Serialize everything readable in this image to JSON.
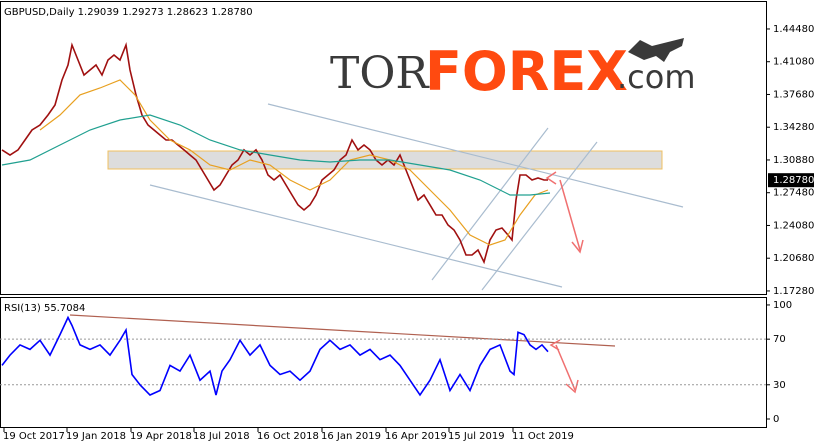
{
  "chart_data": [
    {
      "type": "line",
      "title": "GBPUSD,Daily  1.29039 1.29273 1.28623 1.28780",
      "logo": {
        "a": "TOR",
        "b": "FOREX",
        "c": ".com"
      },
      "xlim": [
        0,
        766
      ],
      "ylim": [
        1.1686,
        1.4728
      ],
      "yticks": [
        {
          "value": 1.4448,
          "label": "1.44480"
        },
        {
          "value": 1.4108,
          "label": "1.41080"
        },
        {
          "value": 1.3768,
          "label": "1.37680"
        },
        {
          "value": 1.3428,
          "label": "1.34280"
        },
        {
          "value": 1.3088,
          "label": "1.30880"
        },
        {
          "value": 1.2748,
          "label": "1.27480"
        },
        {
          "value": 1.2408,
          "label": "1.24080"
        },
        {
          "value": 1.2068,
          "label": "1.20680"
        },
        {
          "value": 1.1728,
          "label": "1.17280"
        }
      ],
      "last_price": {
        "value": 1.2878,
        "label": "1.28780"
      },
      "series": [
        {
          "color": "#a01010",
          "x": [
            2,
            10,
            18,
            25,
            32,
            40,
            48,
            55,
            62,
            68,
            72,
            78,
            84,
            90,
            96,
            102,
            108,
            114,
            120,
            126,
            130,
            136,
            142,
            148,
            154,
            160,
            166,
            172,
            178,
            184,
            190,
            196,
            202,
            208,
            214,
            220,
            226,
            232,
            238,
            244,
            250,
            256,
            262,
            268,
            274,
            280,
            286,
            292,
            298,
            304,
            310,
            316,
            322,
            328,
            334,
            340,
            346,
            352,
            358,
            364,
            370,
            376,
            382,
            388,
            394,
            400,
            406,
            412,
            418,
            424,
            430,
            436,
            442,
            448,
            454,
            460,
            466,
            472,
            478,
            484,
            490,
            496,
            502,
            508,
            512,
            516,
            520,
            526,
            532,
            538,
            544,
            548
          ],
          "values": [
            1.3192,
            1.314,
            1.3192,
            1.3295,
            1.3399,
            1.3451,
            1.3555,
            1.3659,
            1.3918,
            1.4074,
            1.4282,
            1.4126,
            1.397,
            1.4022,
            1.4074,
            1.397,
            1.4126,
            1.4178,
            1.4126,
            1.4282,
            1.4022,
            1.3763,
            1.3555,
            1.3451,
            1.3399,
            1.3347,
            1.3295,
            1.3295,
            1.3243,
            1.3192,
            1.314,
            1.3088,
            1.2984,
            1.288,
            1.2776,
            1.2828,
            1.2932,
            1.3036,
            1.3088,
            1.3192,
            1.314,
            1.3192,
            1.3088,
            1.2932,
            1.288,
            1.2932,
            1.2828,
            1.2724,
            1.2621,
            1.2569,
            1.2621,
            1.2724,
            1.288,
            1.2932,
            1.2984,
            1.3088,
            1.314,
            1.3295,
            1.3192,
            1.3243,
            1.3192,
            1.3088,
            1.3036,
            1.3088,
            1.3036,
            1.314,
            1.2984,
            1.2828,
            1.2672,
            1.2724,
            1.2621,
            1.2517,
            1.2517,
            1.2413,
            1.2361,
            1.2257,
            1.2101,
            1.2101,
            1.2153,
            1.2029,
            1.2257,
            1.2361,
            1.2382,
            1.2309,
            1.2257,
            1.2672,
            1.2932,
            1.2932,
            1.288,
            1.2901,
            1.288,
            1.288
          ]
        },
        {
          "color": "#e8a020",
          "x": [
            40,
            60,
            80,
            100,
            120,
            135,
            150,
            170,
            190,
            210,
            230,
            250,
            270,
            290,
            310,
            330,
            350,
            370,
            390,
            410,
            430,
            450,
            470,
            490,
            505,
            520,
            535,
            548
          ],
          "values": [
            1.3399,
            1.3555,
            1.3763,
            1.3835,
            1.3918,
            1.3763,
            1.3503,
            1.3295,
            1.3192,
            1.3036,
            1.2984,
            1.3088,
            1.3036,
            1.288,
            1.2776,
            1.288,
            1.3088,
            1.314,
            1.3088,
            1.2984,
            1.2776,
            1.2569,
            1.2309,
            1.2205,
            1.2257,
            1.2517,
            1.2724,
            1.2776
          ]
        },
        {
          "color": "#20a090",
          "x": [
            2,
            30,
            60,
            90,
            120,
            150,
            180,
            210,
            240,
            270,
            300,
            330,
            360,
            390,
            420,
            450,
            480,
            510,
            530,
            550
          ],
          "values": [
            1.3036,
            1.3088,
            1.3243,
            1.3399,
            1.3503,
            1.3555,
            1.3451,
            1.3295,
            1.3192,
            1.314,
            1.3088,
            1.3067,
            1.3088,
            1.3088,
            1.3036,
            1.2984,
            1.288,
            1.2724,
            1.2724,
            1.2745
          ]
        }
      ]
    },
    {
      "type": "line",
      "title": "RSI(13) 55.7084",
      "xlim": [
        0,
        766
      ],
      "ylim": [
        -7.9,
        106.1
      ],
      "yticks": [
        100,
        70,
        30,
        0
      ],
      "levels": [
        70,
        30
      ],
      "xticks": [
        {
          "value": 4,
          "label": "19 Oct 2017"
        },
        {
          "value": 67,
          "label": "19 Jan 2018"
        },
        {
          "value": 131,
          "label": "19 Apr 2018"
        },
        {
          "value": 194,
          "label": "18 Jul 2018"
        },
        {
          "value": 258,
          "label": "16 Oct 2018"
        },
        {
          "value": 322,
          "label": "16 Jan 2019"
        },
        {
          "value": 386,
          "label": "16 Apr 2019"
        },
        {
          "value": 449,
          "label": "15 Jul 2019"
        },
        {
          "value": 513,
          "label": "11 Oct 2019"
        }
      ],
      "series": [
        {
          "color": "#0000ff",
          "x": [
            2,
            10,
            20,
            30,
            40,
            50,
            60,
            68,
            72,
            80,
            90,
            100,
            110,
            120,
            126,
            132,
            140,
            150,
            160,
            170,
            180,
            190,
            200,
            210,
            216,
            222,
            230,
            240,
            250,
            260,
            270,
            280,
            290,
            300,
            310,
            320,
            330,
            340,
            350,
            360,
            370,
            380,
            390,
            400,
            410,
            420,
            430,
            440,
            450,
            460,
            470,
            480,
            490,
            500,
            510,
            514,
            518,
            524,
            530,
            536,
            542,
            548
          ],
          "values": [
            47,
            56,
            65,
            61,
            69,
            56,
            74,
            89,
            82,
            65,
            61,
            65,
            56,
            69,
            78,
            39,
            30,
            21,
            25,
            47,
            42,
            56,
            34,
            42,
            21,
            42,
            52,
            69,
            56,
            65,
            47,
            39,
            42,
            34,
            42,
            61,
            69,
            61,
            65,
            56,
            61,
            52,
            56,
            47,
            34,
            21,
            34,
            52,
            25,
            39,
            25,
            47,
            61,
            65,
            42,
            39,
            76,
            74,
            65,
            61,
            65,
            59
          ]
        }
      ]
    }
  ]
}
